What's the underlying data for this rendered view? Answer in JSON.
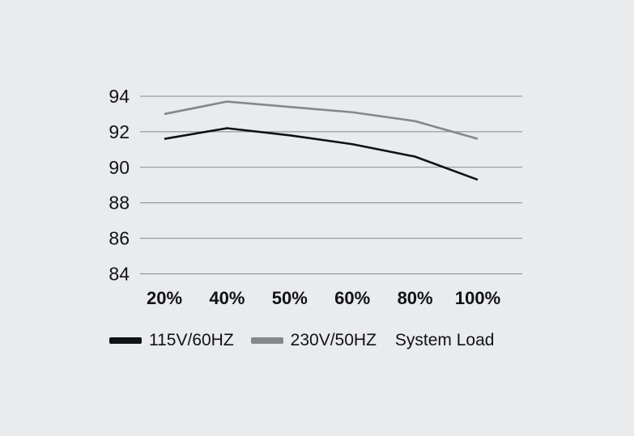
{
  "colors": {
    "background": "#eaebed",
    "grid": "#85888c",
    "text": "#111214",
    "series_115v": "#101113",
    "series_230v": "#85878a"
  },
  "chart_data": {
    "type": "line",
    "title": "",
    "xlabel": "System Load",
    "ylabel": "",
    "categories": [
      "20%",
      "40%",
      "50%",
      "60%",
      "80%",
      "100%"
    ],
    "series": [
      {
        "name": "115V/60HZ",
        "color": "#101113",
        "values": [
          91.6,
          92.2,
          91.8,
          91.3,
          90.6,
          89.3
        ]
      },
      {
        "name": "230V/50HZ",
        "color": "#85878a",
        "values": [
          93.0,
          93.7,
          93.4,
          93.1,
          92.6,
          91.6
        ]
      }
    ],
    "ylim": [
      84,
      94
    ],
    "yticks": [
      94,
      92,
      90,
      88,
      86,
      84
    ],
    "grid": true,
    "legend_position": "bottom"
  }
}
